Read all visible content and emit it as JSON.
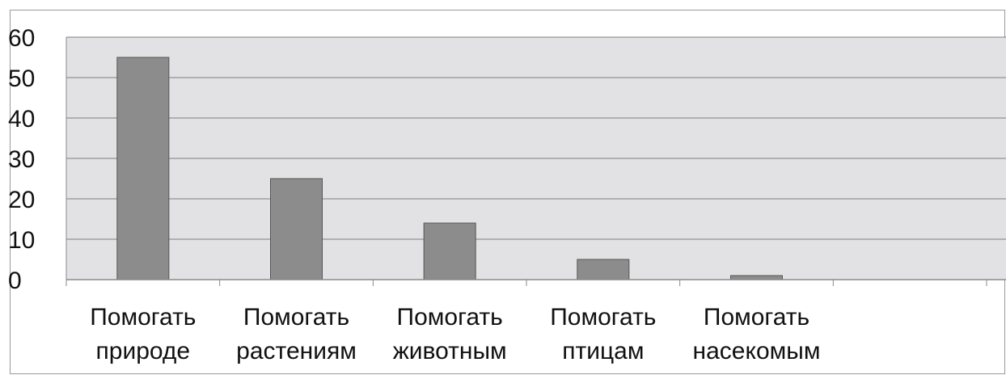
{
  "chart_data": {
    "type": "bar",
    "categories": [
      [
        "Помогать",
        "природе"
      ],
      [
        "Помогать",
        "растениям"
      ],
      [
        "Помогать",
        "животным"
      ],
      [
        "Помогать",
        "птицам"
      ],
      [
        "Помогать",
        "насекомым"
      ],
      [
        "",
        ""
      ]
    ],
    "values": [
      55,
      25,
      14,
      5,
      1,
      null
    ],
    "ylim": [
      0,
      60
    ],
    "yticks": [
      0,
      10,
      20,
      30,
      40,
      50,
      60
    ],
    "grid": true,
    "legend": "none",
    "colors": {
      "bar": "#8c8c8c",
      "bar_stroke": "#555555",
      "plot_bg": "#e2e2e4",
      "grid": "#7f7f7f",
      "axis": "#8a8a8a",
      "frame": "#9a9a9a"
    }
  }
}
